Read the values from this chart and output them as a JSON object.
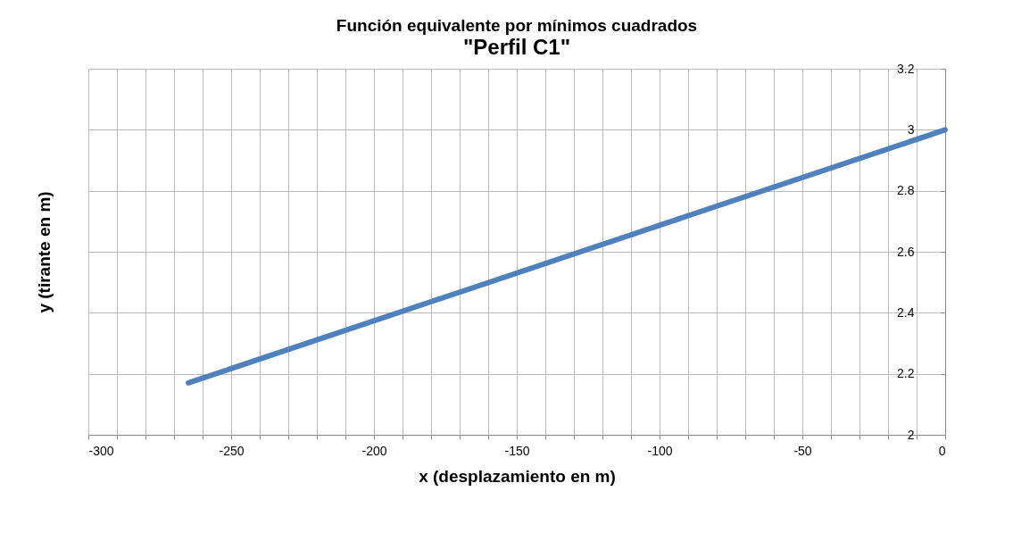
{
  "chart_data": {
    "type": "line",
    "title": "Función equivalente por mínimos cuadrados",
    "subtitle": "\"Perfil C1\"",
    "xlabel": "x (desplazamiento en m)",
    "ylabel": "y (tirante en m)",
    "x": [
      -265,
      0
    ],
    "series": [
      {
        "color": "#4f81bd",
        "values": [
          2.17,
          3.0
        ]
      }
    ],
    "xlim": [
      -300,
      0
    ],
    "xticks": [
      -300,
      {
        "value": -290,
        "label": null
      },
      {
        "value": -280,
        "label": null
      },
      {
        "value": -270,
        "label": null
      },
      {
        "value": -260,
        "label": null
      },
      -250,
      {
        "value": -240,
        "label": null
      },
      {
        "value": -230,
        "label": null
      },
      {
        "value": -220,
        "label": null
      },
      {
        "value": -210,
        "label": null
      },
      -200,
      {
        "value": -190,
        "label": null
      },
      {
        "value": -180,
        "label": null
      },
      {
        "value": -170,
        "label": null
      },
      {
        "value": -160,
        "label": null
      },
      -150,
      {
        "value": -140,
        "label": null
      },
      {
        "value": -130,
        "label": null
      },
      {
        "value": -120,
        "label": null
      },
      {
        "value": -110,
        "label": null
      },
      -100,
      {
        "value": -90,
        "label": null
      },
      {
        "value": -80,
        "label": null
      },
      {
        "value": -70,
        "label": null
      },
      {
        "value": -60,
        "label": null
      },
      -50,
      {
        "value": -40,
        "label": null
      },
      {
        "value": -30,
        "label": null
      },
      {
        "value": -20,
        "label": null
      },
      {
        "value": -10,
        "label": null
      },
      0
    ],
    "ylim": [
      2,
      3.2
    ],
    "yticks": [
      2,
      2.2,
      2.4,
      2.6,
      2.8,
      3,
      3.2
    ],
    "grid": true,
    "marker": "none",
    "line_style": "solid"
  }
}
